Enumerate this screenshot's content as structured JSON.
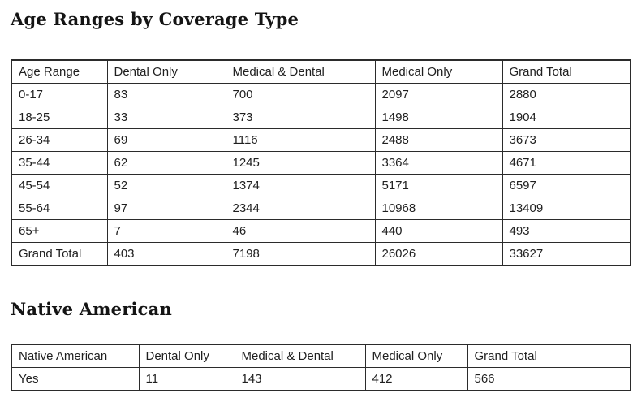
{
  "colors": {
    "background": "#ffffff",
    "text": "#1f1f1f",
    "title": "#141414",
    "table_border": "#2b2b2b"
  },
  "chart_data": [
    {
      "type": "table",
      "title": "Age Ranges by Coverage Type",
      "columns": [
        "Age Range",
        "Dental Only",
        "Medical & Dental",
        "Medical Only",
        "Grand Total"
      ],
      "rows": [
        [
          "0-17",
          83,
          700,
          2097,
          2880
        ],
        [
          "18-25",
          33,
          373,
          1498,
          1904
        ],
        [
          "26-34",
          69,
          1116,
          2488,
          3673
        ],
        [
          "35-44",
          62,
          1245,
          3364,
          4671
        ],
        [
          "45-54",
          52,
          1374,
          5171,
          6597
        ],
        [
          "55-64",
          97,
          2344,
          10968,
          13409
        ],
        [
          "65+",
          7,
          46,
          440,
          493
        ],
        [
          "Grand Total",
          403,
          7198,
          26026,
          33627
        ]
      ]
    },
    {
      "type": "table",
      "title": "Native American",
      "columns": [
        "Native American",
        "Dental Only",
        "Medical & Dental",
        "Medical Only",
        "Grand Total"
      ],
      "rows": [
        [
          "Yes",
          11,
          143,
          412,
          566
        ]
      ]
    }
  ]
}
